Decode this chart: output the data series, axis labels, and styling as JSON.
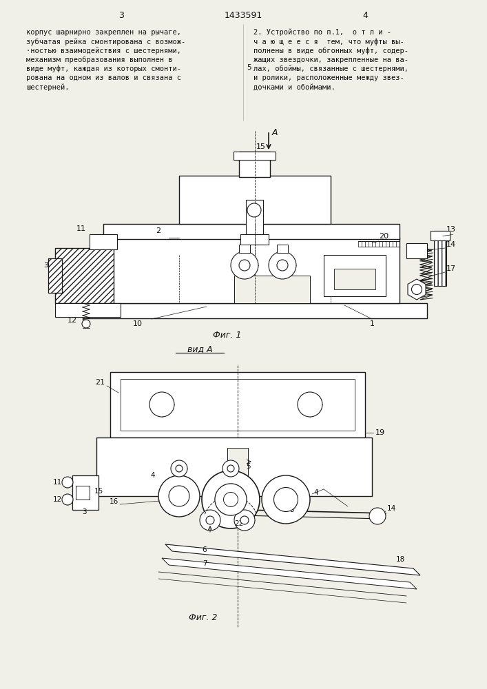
{
  "page_numbers": [
    "3",
    "4"
  ],
  "patent_number": "1433591",
  "left_text_lines": [
    "корпус шарнирно закреплен на рычаге,",
    "зубчатая рейка смонтирована с возмож-",
    "·ностью взаимодействия с шестернями,",
    "механизм преобразования выполнен в",
    "виде муфт, каждая из которых смонти-",
    "рована на одном из валов и связана с",
    "шестерней."
  ],
  "right_text_lines": [
    "2. Устройство по п.1,  о т л и -",
    "ч а ю щ е е с я  тем, что муфты вы-",
    "полнены в виде обгонных муфт, содер-",
    "жащих звездочки, закрепленные на ва-",
    "лах, обоймы, связанные с шестернями,",
    "и ролики, расположенные между звез-",
    "дочками и обоймами."
  ],
  "fig1_label": "Фиг. 1",
  "fig2_label": "Фиг. 2",
  "view_label": "вид А",
  "bg_color": "#f0efe8",
  "text_color": "#111111",
  "line_color": "#1a1a1a",
  "hatch_color": "#555555"
}
